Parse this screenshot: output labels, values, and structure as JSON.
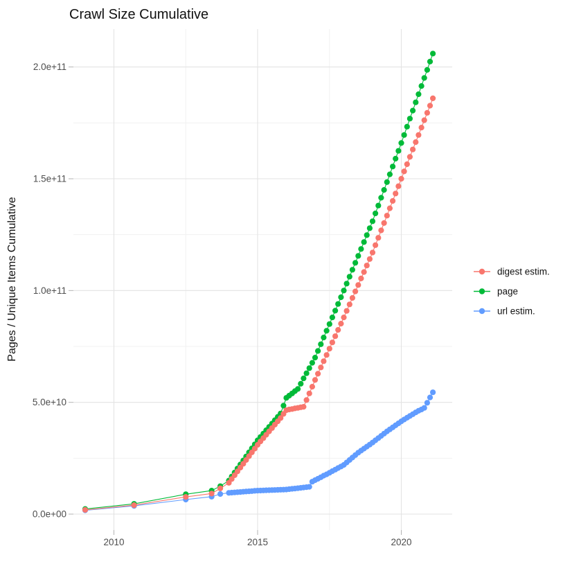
{
  "title": "Crawl Size Cumulative",
  "y_axis": {
    "label": "Pages / Unique Items Cumulative",
    "ticks": [
      "0.0e+00",
      "5.0e+10",
      "1.0e+11",
      "1.5e+11",
      "2.0e+11"
    ],
    "tick_values_billions": [
      0,
      50,
      100,
      150,
      200
    ],
    "minor_values_billions": [
      25,
      75,
      125,
      175
    ]
  },
  "x_axis": {
    "ticks": [
      "2010",
      "2015",
      "2020"
    ],
    "tick_values": [
      2010,
      2015,
      2020
    ],
    "minor_values": [
      2012.5,
      2017.5
    ]
  },
  "legend": {
    "position": "right",
    "items": [
      {
        "label": "digest estim.",
        "color": "#F8766D"
      },
      {
        "label": "page",
        "color": "#00BA38"
      },
      {
        "label": "url estim.",
        "color": "#619CFF"
      }
    ]
  },
  "chart_data": {
    "type": "line",
    "title": "Crawl Size Cumulative",
    "xlabel": "",
    "ylabel": "Pages / Unique Items Cumulative",
    "xlim": [
      2008.6,
      2021.9
    ],
    "ylim_billions": [
      0,
      217
    ],
    "grid": "on",
    "legend_position": "right",
    "marker": "point",
    "value_unit": "1e9 pages (billions); axis shows scientific notation",
    "x": [
      2009.0,
      2010.7,
      2012.5,
      2013.4,
      2013.7,
      2014.0,
      2014.1,
      2014.2,
      2014.3,
      2014.4,
      2014.5,
      2014.6,
      2014.7,
      2014.8,
      2014.9,
      2015.0,
      2015.1,
      2015.2,
      2015.3,
      2015.4,
      2015.5,
      2015.6,
      2015.7,
      2015.8,
      2015.9,
      2016.0,
      2016.1,
      2016.2,
      2016.3,
      2016.4,
      2016.5,
      2016.6,
      2016.7,
      2016.8,
      2016.9,
      2017.0,
      2017.1,
      2017.2,
      2017.3,
      2017.4,
      2017.5,
      2017.6,
      2017.7,
      2017.8,
      2017.9,
      2018.0,
      2018.1,
      2018.2,
      2018.3,
      2018.4,
      2018.5,
      2018.6,
      2018.7,
      2018.8,
      2018.9,
      2019.0,
      2019.1,
      2019.2,
      2019.3,
      2019.4,
      2019.5,
      2019.6,
      2019.7,
      2019.8,
      2019.9,
      2020.0,
      2020.1,
      2020.2,
      2020.3,
      2020.4,
      2020.5,
      2020.6,
      2020.7,
      2020.8,
      2020.9,
      2021.0,
      2021.1
    ],
    "series": [
      {
        "name": "page",
        "color": "#00BA38",
        "values_billions": [
          2.3,
          4.6,
          8.9,
          10.5,
          12.5,
          15,
          16.8,
          18.6,
          20.4,
          22.2,
          24,
          25.8,
          27.6,
          29.4,
          31.2,
          33,
          34.5,
          36,
          37.5,
          39,
          40.5,
          42,
          43.5,
          45,
          48.5,
          52,
          53,
          54,
          55,
          56,
          58.3,
          60.7,
          63,
          65.3,
          67.7,
          70,
          73,
          76,
          79,
          82,
          85,
          88,
          91,
          94,
          97,
          100,
          103.1,
          106.2,
          109.3,
          112.4,
          115.5,
          118.6,
          121.7,
          124.8,
          127.9,
          131,
          134.5,
          138,
          141.5,
          145,
          148.5,
          152,
          155.5,
          159,
          162.5,
          166,
          169.6,
          173.3,
          176.9,
          180.5,
          184.2,
          187.8,
          191.5,
          195.1,
          198.7,
          202.4,
          206
        ]
      },
      {
        "name": "url estim.",
        "color": "#619CFF",
        "values_billions": [
          1.7,
          3.7,
          6.5,
          7.8,
          9.0,
          9.5,
          9.6,
          9.7,
          9.8,
          9.9,
          10,
          10.1,
          10.2,
          10.3,
          10.4,
          10.5,
          10.55,
          10.6,
          10.65,
          10.7,
          10.75,
          10.8,
          10.85,
          10.9,
          10.95,
          11,
          11.15,
          11.3,
          11.45,
          11.6,
          11.75,
          11.9,
          12.05,
          12.2,
          14.5,
          15.2,
          15.8,
          16.5,
          17.2,
          17.8,
          18.5,
          19.2,
          19.9,
          20.6,
          21.3,
          22,
          23.1,
          24.2,
          25.3,
          26.4,
          27.5,
          28.4,
          29.3,
          30.2,
          31.1,
          32,
          33,
          34,
          35,
          36,
          37,
          37.9,
          38.8,
          39.7,
          40.6,
          41.5,
          42.3,
          43.1,
          43.9,
          44.7,
          45.5,
          46.2,
          46.8,
          47.5,
          49.8,
          52.2,
          54.5
        ]
      },
      {
        "name": "digest estim.",
        "color": "#F8766D",
        "values_billions": [
          1.9,
          4.0,
          7.7,
          9.2,
          11.5,
          14,
          15.7,
          17.4,
          19.1,
          20.8,
          22.5,
          24.2,
          25.9,
          27.6,
          29.3,
          31,
          32.5,
          34,
          35.5,
          37,
          38.5,
          40,
          41.5,
          43,
          44.8,
          46.5,
          46.8,
          47,
          47.3,
          47.5,
          47.8,
          48,
          51,
          54,
          57,
          60,
          62.8,
          65.6,
          68.4,
          71.2,
          74,
          76.8,
          79.6,
          82.4,
          85.2,
          88,
          90.9,
          93.8,
          96.7,
          99.6,
          102.5,
          105.4,
          108.3,
          111.2,
          114.1,
          117,
          120.3,
          123.6,
          126.9,
          130.2,
          133.5,
          136.8,
          140.1,
          143.4,
          146.7,
          150,
          153.3,
          156.5,
          159.8,
          163.1,
          166.4,
          169.6,
          172.9,
          176.2,
          179.5,
          182.7,
          186
        ]
      }
    ]
  }
}
